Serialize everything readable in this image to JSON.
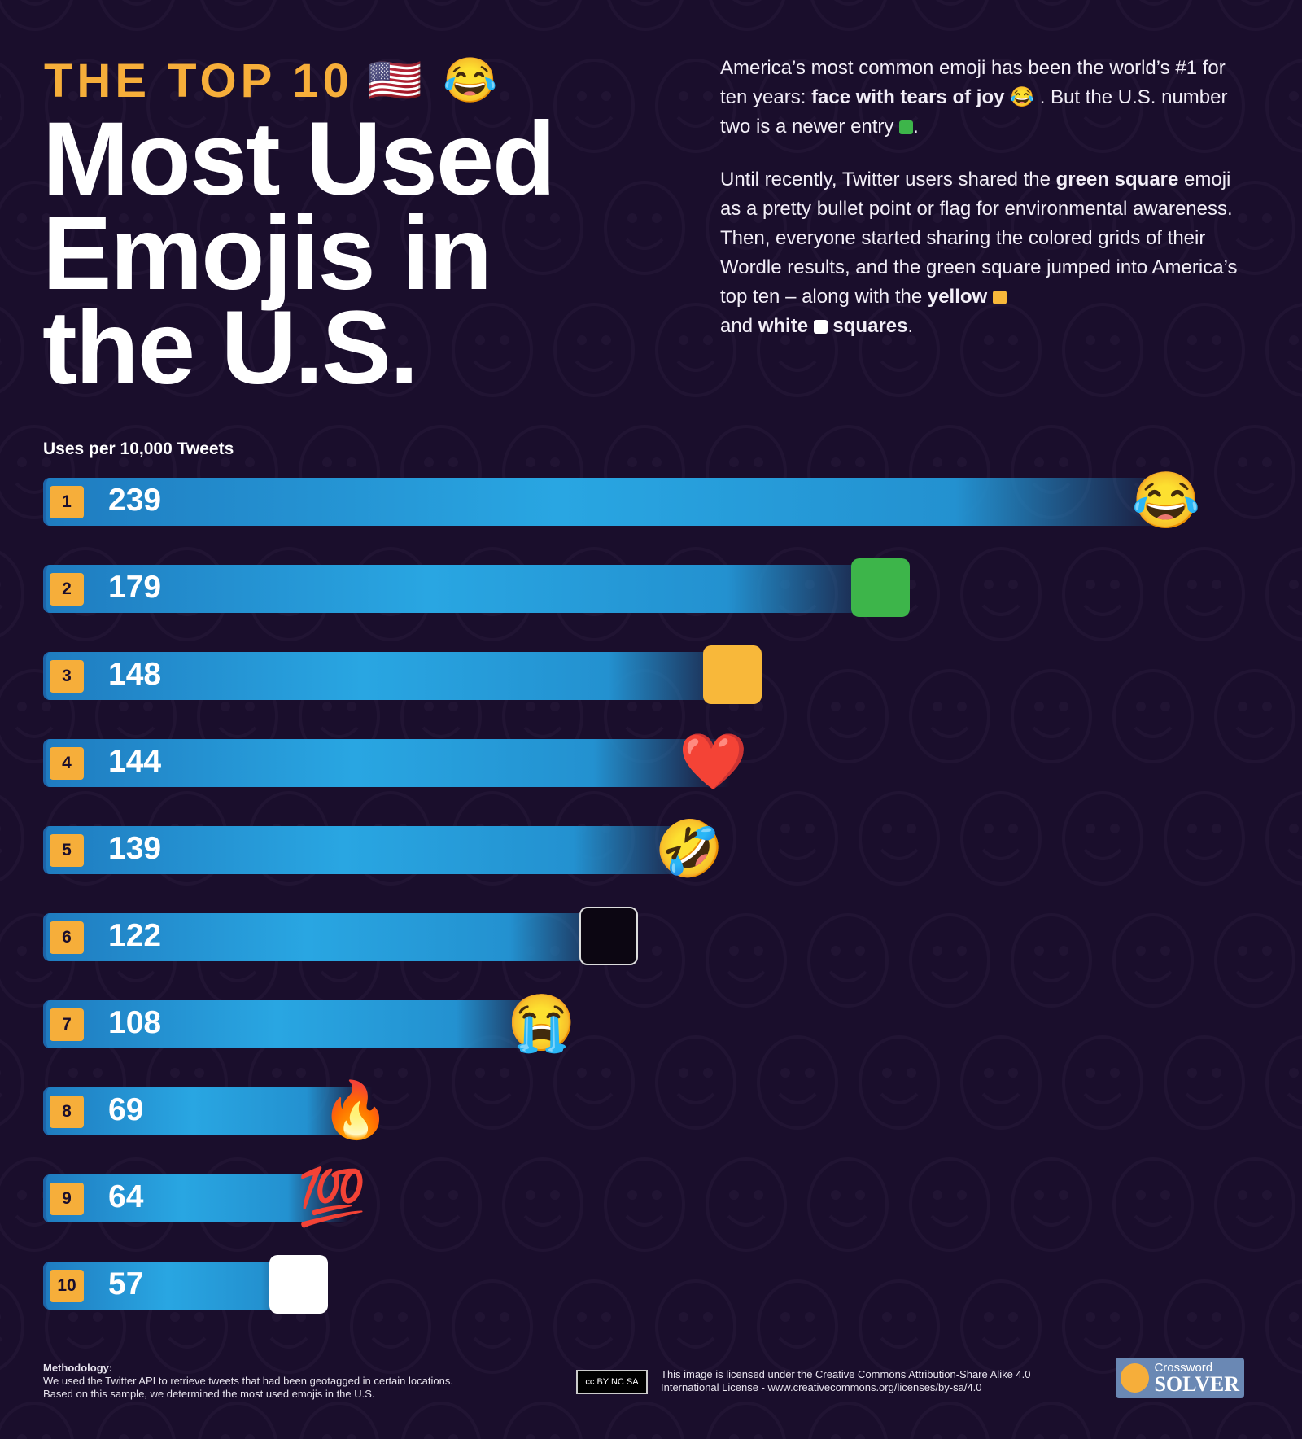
{
  "header": {
    "kicker": "THE TOP 10",
    "kicker_emojis": "🇺🇸 😂",
    "title": "Most Used Emojis in the U.S."
  },
  "intro": {
    "p1_a": "America’s most common emoji has been the world’s #1 for ten years: ",
    "p1_bold": "face with tears of joy",
    "p1_emoji": "😂",
    "p1_b": " . But the U.S. number two is a newer entry ",
    "p1_c": ".",
    "p2_a": "Until recently, Twitter users shared the ",
    "p2_bold1": "green square",
    "p2_b": " emoji as a pretty bullet point or flag for environmental awareness. Then, everyone started sharing the colored grids of their Wordle results, and the green square jumped into America’s top ten – along with the ",
    "p2_bold2": "yellow",
    "p2_c": " and ",
    "p2_bold3": "white",
    "p2_bold4": "squares",
    "p2_d": "."
  },
  "colors": {
    "background": "#1a0e2c",
    "accent": "#f6ae3a",
    "bar": "#29a6e2",
    "green": "#3db54a",
    "yellow": "#f8b83a",
    "white": "#ffffff"
  },
  "chart_data": {
    "type": "bar",
    "orientation": "horizontal",
    "ylabel": "Uses per 10,000 Tweets",
    "categories": [
      "face with tears of joy",
      "green square",
      "yellow square",
      "red heart",
      "rolling on the floor laughing",
      "black square",
      "loudly crying face",
      "fire",
      "hundred points",
      "white square"
    ],
    "ranks": [
      "1",
      "2",
      "3",
      "4",
      "5",
      "6",
      "7",
      "8",
      "9",
      "10"
    ],
    "values": [
      239,
      179,
      148,
      144,
      139,
      122,
      108,
      69,
      64,
      57
    ],
    "emojis": [
      "😂",
      "green-square",
      "yellow-square",
      "❤️",
      "🤣",
      "black-square",
      "😭",
      "🔥",
      "💯",
      "white-square"
    ],
    "xlim": [
      0,
      239
    ]
  },
  "footer": {
    "methodology_title": "Methodology:",
    "methodology_text": "We used the Twitter API to retrieve tweets that had been geotagged in certain locations. Based on this sample, we determined the most used emojis in the U.S.",
    "license_badge": "cc BY NC SA",
    "license_text": "This image is licensed under the Creative Commons Attribution-Share Alike 4.0 International License - www.creativecommons.org/licenses/by-sa/4.0",
    "logo_line1": "Crossword",
    "logo_line2": "SOLVER"
  }
}
